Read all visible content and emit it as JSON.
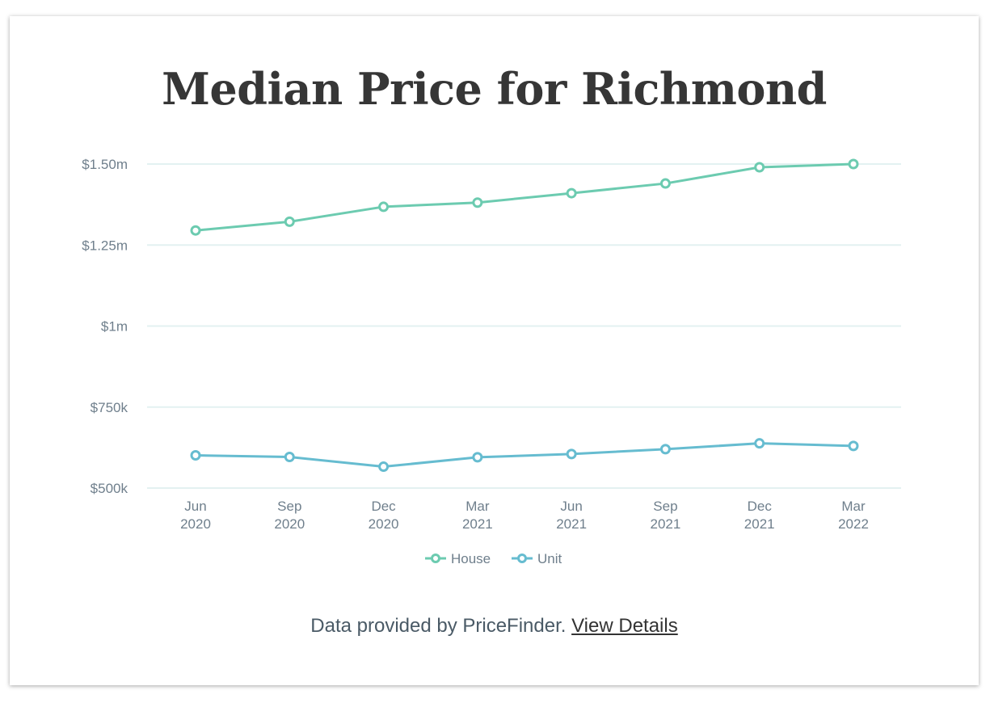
{
  "chart_data": {
    "type": "line",
    "title": "Median Price for Richmond",
    "categories": [
      [
        "Jun",
        "2020"
      ],
      [
        "Sep",
        "2020"
      ],
      [
        "Dec",
        "2020"
      ],
      [
        "Mar",
        "2021"
      ],
      [
        "Jun",
        "2021"
      ],
      [
        "Sep",
        "2021"
      ],
      [
        "Dec",
        "2021"
      ],
      [
        "Mar",
        "2022"
      ]
    ],
    "yticks": [
      {
        "value": 500000,
        "label": "$500k"
      },
      {
        "value": 750000,
        "label": "$750k"
      },
      {
        "value": 1000000,
        "label": "$1m"
      },
      {
        "value": 1250000,
        "label": "$1.25m"
      },
      {
        "value": 1500000,
        "label": "$1.50m"
      }
    ],
    "ylim": [
      500000,
      1500000
    ],
    "grid": true,
    "legend": "bottom-center",
    "series": [
      {
        "name": "House",
        "color": "#6ccbb0",
        "values": [
          1295000,
          1322000,
          1368000,
          1381000,
          1410000,
          1440000,
          1490000,
          1500000
        ]
      },
      {
        "name": "Unit",
        "color": "#66bcd0",
        "values": [
          601000,
          596000,
          566000,
          595000,
          605000,
          620000,
          638000,
          630000
        ]
      }
    ]
  },
  "footer": {
    "text": "Data provided by PriceFinder.",
    "link_label": "View Details"
  }
}
